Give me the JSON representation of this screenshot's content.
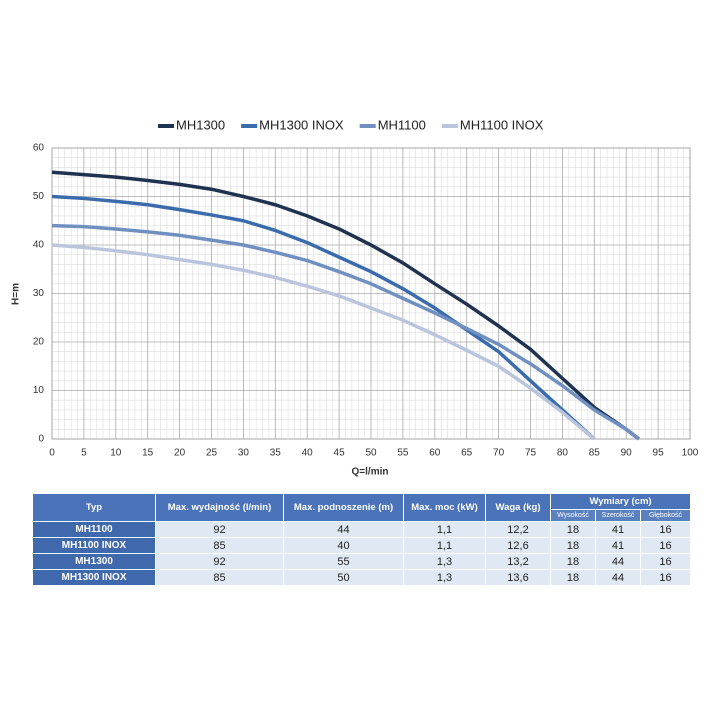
{
  "chart_data": {
    "type": "line",
    "x_label": "Q=l/min",
    "y_label": "H=m",
    "xlim": [
      0,
      100
    ],
    "ylim": [
      0,
      60
    ],
    "xticks": [
      0,
      5,
      10,
      15,
      20,
      25,
      30,
      35,
      40,
      45,
      50,
      55,
      60,
      65,
      70,
      75,
      80,
      85,
      90,
      95,
      100
    ],
    "yticks": [
      0,
      10,
      20,
      30,
      40,
      50,
      60
    ],
    "grid": true,
    "legend": "top",
    "series": [
      {
        "name": "MH1300",
        "color": "#1f3350",
        "x": [
          0,
          5,
          10,
          15,
          20,
          25,
          30,
          35,
          40,
          45,
          50,
          55,
          60,
          65,
          70,
          75,
          80,
          85,
          90,
          92
        ],
        "values": [
          55,
          54.5,
          54,
          53.3,
          52.5,
          51.5,
          50,
          48.3,
          46,
          43.3,
          40,
          36.3,
          32,
          27.8,
          23.3,
          18.5,
          12.5,
          6.5,
          2,
          0
        ]
      },
      {
        "name": "MH1300 INOX",
        "color": "#3a6cad",
        "x": [
          0,
          5,
          10,
          15,
          20,
          25,
          30,
          35,
          40,
          45,
          50,
          55,
          60,
          65,
          70,
          75,
          80,
          85
        ],
        "values": [
          50,
          49.6,
          49,
          48.3,
          47.3,
          46.2,
          45,
          43,
          40.5,
          37.5,
          34.5,
          31,
          27,
          22.5,
          18,
          12,
          6,
          0
        ]
      },
      {
        "name": "MH1100",
        "color": "#7090c2",
        "x": [
          0,
          5,
          10,
          15,
          20,
          25,
          30,
          35,
          40,
          45,
          50,
          55,
          60,
          65,
          70,
          75,
          80,
          85,
          90,
          92
        ],
        "values": [
          44,
          43.8,
          43.3,
          42.7,
          42,
          41,
          40,
          38.5,
          36.8,
          34.5,
          32,
          29,
          26,
          22.8,
          19.5,
          15.5,
          11,
          6,
          2,
          0
        ]
      },
      {
        "name": "MH1100 INOX",
        "color": "#b9c5dd",
        "x": [
          0,
          5,
          10,
          15,
          20,
          25,
          30,
          35,
          40,
          45,
          50,
          55,
          60,
          65,
          70,
          75,
          80,
          85
        ],
        "values": [
          40,
          39.5,
          38.8,
          38,
          37,
          36,
          34.8,
          33.3,
          31.5,
          29.5,
          27,
          24.5,
          21.5,
          18.3,
          15,
          10.5,
          5.5,
          0
        ]
      }
    ]
  },
  "table": {
    "header": [
      "Typ",
      "Max. wydajność (l/min)",
      "Max. podnoszenie (m)",
      "Max. moc (kW)",
      "Waga (kg)",
      "Wymiary (cm)"
    ],
    "subheader": [
      "Wysokość",
      "Szerokość",
      "Głębokość"
    ],
    "rows": [
      [
        "MH1100",
        "92",
        "44",
        "1,1",
        "12,2",
        "18",
        "41",
        "16"
      ],
      [
        "MH1100 INOX",
        "85",
        "40",
        "1,1",
        "12,6",
        "18",
        "41",
        "16"
      ],
      [
        "MH1300",
        "92",
        "55",
        "1,3",
        "13,2",
        "18",
        "44",
        "16"
      ],
      [
        "MH1300 INOX",
        "85",
        "50",
        "1,3",
        "13,6",
        "18",
        "44",
        "16"
      ]
    ]
  }
}
